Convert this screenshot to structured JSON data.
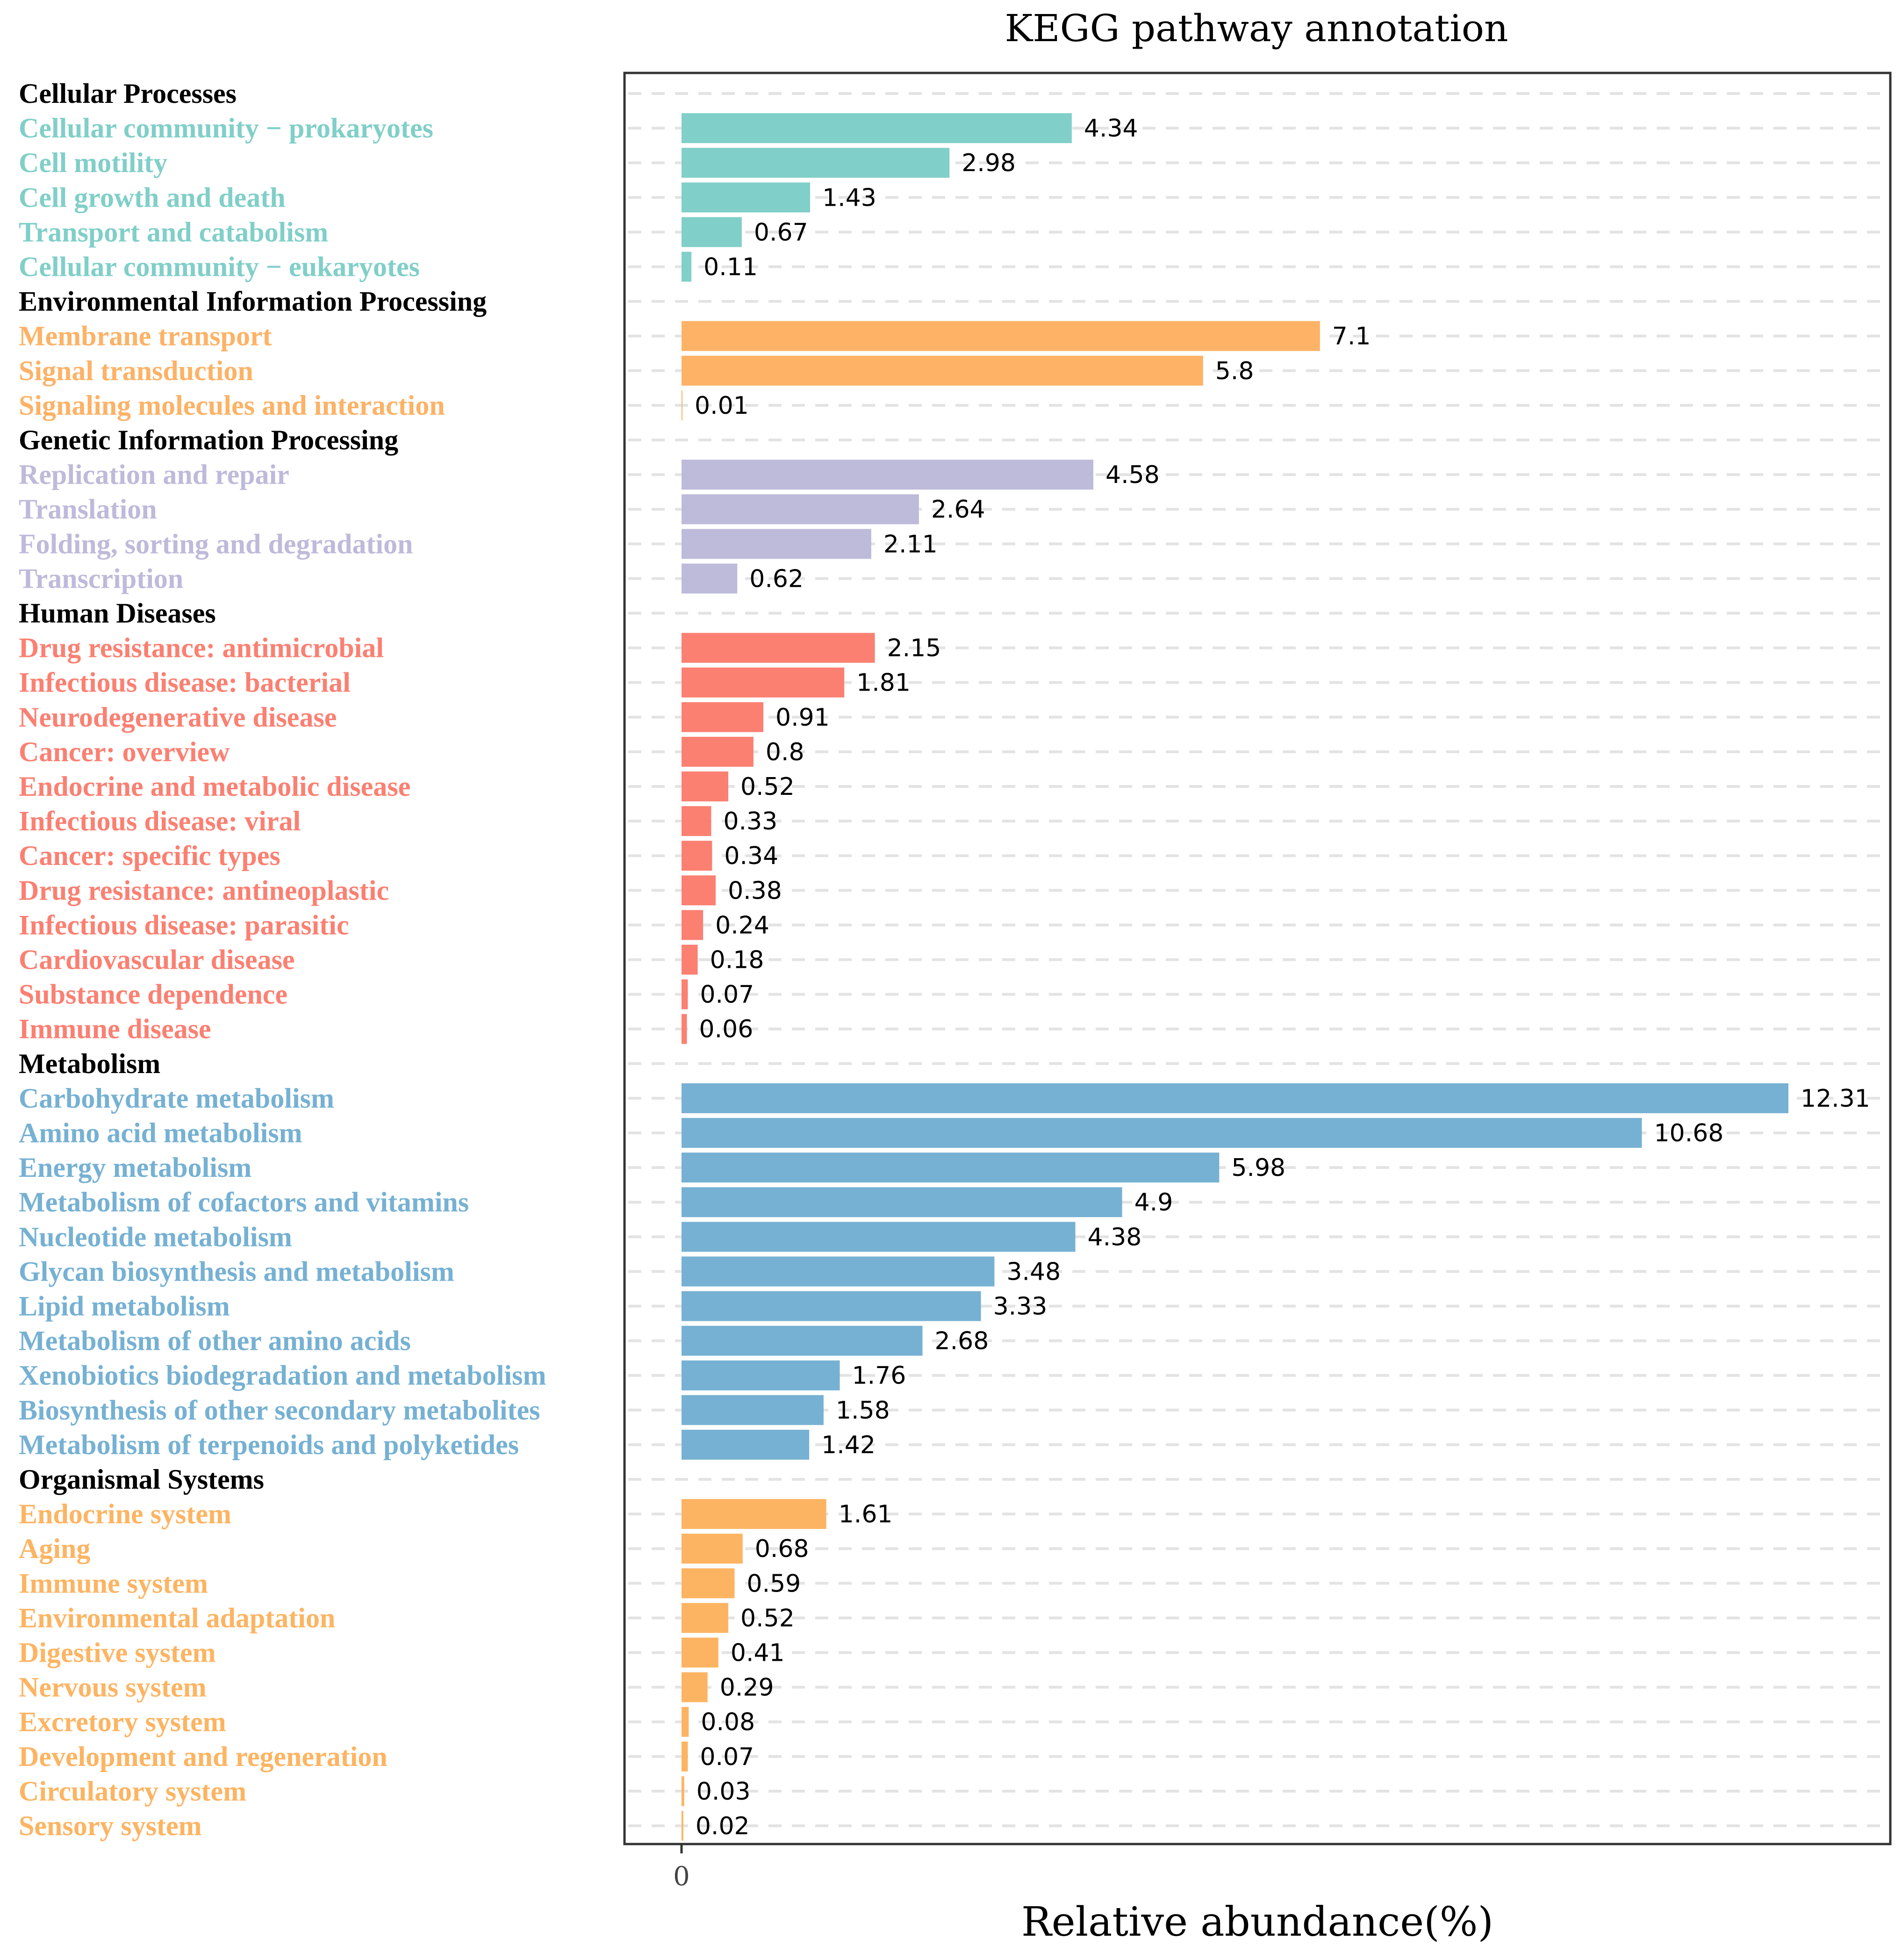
{
  "chart_data": {
    "type": "bar",
    "orientation": "horizontal",
    "title": "KEGG pathway annotation",
    "xlabel": "Relative abundance(%)",
    "ylabel": "",
    "xlim": [
      0,
      13.4
    ],
    "x_ticks": [
      "0"
    ],
    "grid": true,
    "groups": [
      {
        "name": "Cellular Processes",
        "color": "#80CFC8",
        "items": [
          {
            "label": "Cellular community − prokaryotes",
            "value": 4.34
          },
          {
            "label": "Cell motility",
            "value": 2.98
          },
          {
            "label": "Cell growth and death",
            "value": 1.43
          },
          {
            "label": "Transport and catabolism",
            "value": 0.67
          },
          {
            "label": "Cellular community − eukaryotes",
            "value": 0.11
          }
        ]
      },
      {
        "name": "Environmental Information Processing",
        "color": "#FDB266",
        "items": [
          {
            "label": "Membrane transport",
            "value": 7.1
          },
          {
            "label": "Signal transduction",
            "value": 5.8
          },
          {
            "label": "Signaling molecules and interaction",
            "value": 0.01
          }
        ]
      },
      {
        "name": "Genetic Information Processing",
        "color": "#BEBADA",
        "items": [
          {
            "label": "Replication and repair",
            "value": 4.58
          },
          {
            "label": "Translation",
            "value": 2.64
          },
          {
            "label": "Folding, sorting and degradation",
            "value": 2.11
          },
          {
            "label": "Transcription",
            "value": 0.62
          }
        ]
      },
      {
        "name": "Human Diseases",
        "color": "#FB8072",
        "items": [
          {
            "label": "Drug resistance: antimicrobial",
            "value": 2.15
          },
          {
            "label": "Infectious disease: bacterial",
            "value": 1.81
          },
          {
            "label": "Neurodegenerative disease",
            "value": 0.91
          },
          {
            "label": "Cancer: overview",
            "value": 0.8
          },
          {
            "label": "Endocrine and metabolic disease",
            "value": 0.52
          },
          {
            "label": "Infectious disease: viral",
            "value": 0.33
          },
          {
            "label": "Cancer: specific types",
            "value": 0.34
          },
          {
            "label": "Drug resistance: antineoplastic",
            "value": 0.38
          },
          {
            "label": "Infectious disease: parasitic",
            "value": 0.24
          },
          {
            "label": "Cardiovascular disease",
            "value": 0.18
          },
          {
            "label": "Substance dependence",
            "value": 0.07
          },
          {
            "label": "Immune disease",
            "value": 0.06
          }
        ]
      },
      {
        "name": "Metabolism",
        "color": "#76B1D3",
        "items": [
          {
            "label": "Carbohydrate metabolism",
            "value": 12.31
          },
          {
            "label": "Amino acid metabolism",
            "value": 10.68
          },
          {
            "label": "Energy metabolism",
            "value": 5.98
          },
          {
            "label": "Metabolism of cofactors and vitamins",
            "value": 4.9
          },
          {
            "label": "Nucleotide metabolism",
            "value": 4.38
          },
          {
            "label": "Glycan biosynthesis and metabolism",
            "value": 3.48
          },
          {
            "label": "Lipid metabolism",
            "value": 3.33
          },
          {
            "label": "Metabolism of other amino acids",
            "value": 2.68
          },
          {
            "label": "Xenobiotics biodegradation and metabolism",
            "value": 1.76
          },
          {
            "label": "Biosynthesis of other secondary metabolites",
            "value": 1.58
          },
          {
            "label": "Metabolism of terpenoids and polyketides",
            "value": 1.42
          }
        ]
      },
      {
        "name": "Organismal Systems",
        "color": "#FDB462",
        "items": [
          {
            "label": "Endocrine system",
            "value": 1.61
          },
          {
            "label": "Aging",
            "value": 0.68
          },
          {
            "label": "Immune system",
            "value": 0.59
          },
          {
            "label": "Environmental adaptation",
            "value": 0.52
          },
          {
            "label": "Digestive system",
            "value": 0.41
          },
          {
            "label": "Nervous system",
            "value": 0.29
          },
          {
            "label": "Excretory system",
            "value": 0.08
          },
          {
            "label": "Development and regeneration",
            "value": 0.07
          },
          {
            "label": "Circulatory system",
            "value": 0.03
          },
          {
            "label": "Sensory system",
            "value": 0.02
          }
        ]
      }
    ]
  }
}
